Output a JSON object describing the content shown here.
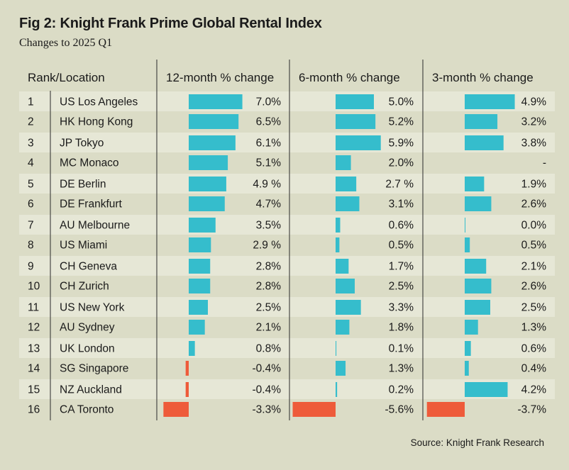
{
  "title": "Fig 2: Knight Frank Prime Global Rental Index",
  "subtitle": "Changes to 2025 Q1",
  "source": "Source: Knight Frank Research",
  "colors": {
    "background": "#dbdcc6",
    "row_band": "#e6e7d6",
    "positive": "#35bdcc",
    "negative": "#ee5b3a",
    "text": "#1a1a1a"
  },
  "chart_data": {
    "type": "table",
    "columns": [
      "Rank/Location",
      "12-month % change",
      "6-month % change",
      "3-month % change"
    ],
    "rows": [
      {
        "rank": "1",
        "location": "US Los Angeles",
        "m12": 7.0,
        "m12_label": "7.0%",
        "m6": 5.0,
        "m6_label": "5.0%",
        "m3": 4.9,
        "m3_label": "4.9%"
      },
      {
        "rank": "2",
        "location": "HK Hong Kong",
        "m12": 6.5,
        "m12_label": "6.5%",
        "m6": 5.2,
        "m6_label": "5.2%",
        "m3": 3.2,
        "m3_label": "3.2%"
      },
      {
        "rank": "3",
        "location": "JP Tokyo",
        "m12": 6.1,
        "m12_label": "6.1%",
        "m6": 5.9,
        "m6_label": "5.9%",
        "m3": 3.8,
        "m3_label": "3.8%"
      },
      {
        "rank": "4",
        "location": "MC Monaco",
        "m12": 5.1,
        "m12_label": "5.1%",
        "m6": 2.0,
        "m6_label": "2.0%",
        "m3": null,
        "m3_label": "-"
      },
      {
        "rank": "5",
        "location": "DE Berlin",
        "m12": 4.9,
        "m12_label": "4.9 %",
        "m6": 2.7,
        "m6_label": "2.7 %",
        "m3": 1.9,
        "m3_label": "1.9%"
      },
      {
        "rank": "6",
        "location": "DE Frankfurt",
        "m12": 4.7,
        "m12_label": "4.7%",
        "m6": 3.1,
        "m6_label": "3.1%",
        "m3": 2.6,
        "m3_label": "2.6%"
      },
      {
        "rank": "7",
        "location": "AU Melbourne",
        "m12": 3.5,
        "m12_label": "3.5%",
        "m6": 0.6,
        "m6_label": "0.6%",
        "m3": 0.0,
        "m3_label": "0.0%"
      },
      {
        "rank": "8",
        "location": "US Miami",
        "m12": 2.9,
        "m12_label": "2.9 %",
        "m6": 0.5,
        "m6_label": "0.5%",
        "m3": 0.5,
        "m3_label": "0.5%"
      },
      {
        "rank": "9",
        "location": "CH Geneva",
        "m12": 2.8,
        "m12_label": "2.8%",
        "m6": 1.7,
        "m6_label": "1.7%",
        "m3": 2.1,
        "m3_label": "2.1%"
      },
      {
        "rank": "10",
        "location": "CH Zurich",
        "m12": 2.8,
        "m12_label": "2.8%",
        "m6": 2.5,
        "m6_label": "2.5%",
        "m3": 2.6,
        "m3_label": "2.6%"
      },
      {
        "rank": "11",
        "location": "US New York",
        "m12": 2.5,
        "m12_label": "2.5%",
        "m6": 3.3,
        "m6_label": "3.3%",
        "m3": 2.5,
        "m3_label": "2.5%"
      },
      {
        "rank": "12",
        "location": "AU Sydney",
        "m12": 2.1,
        "m12_label": "2.1%",
        "m6": 1.8,
        "m6_label": "1.8%",
        "m3": 1.3,
        "m3_label": "1.3%"
      },
      {
        "rank": "13",
        "location": "UK London",
        "m12": 0.8,
        "m12_label": "0.8%",
        "m6": 0.1,
        "m6_label": "0.1%",
        "m3": 0.6,
        "m3_label": "0.6%"
      },
      {
        "rank": "14",
        "location": "SG Singapore",
        "m12": -0.4,
        "m12_label": "-0.4%",
        "m6": 1.3,
        "m6_label": "1.3%",
        "m3": 0.4,
        "m3_label": "0.4%"
      },
      {
        "rank": "15",
        "location": "NZ Auckland",
        "m12": -0.4,
        "m12_label": "-0.4%",
        "m6": 0.2,
        "m6_label": "0.2%",
        "m3": 4.2,
        "m3_label": "4.2%"
      },
      {
        "rank": "16",
        "location": "CA Toronto",
        "m12": -3.3,
        "m12_label": "-3.3%",
        "m6": -5.6,
        "m6_label": "-5.6%",
        "m3": -3.7,
        "m3_label": "-3.7%"
      }
    ]
  }
}
